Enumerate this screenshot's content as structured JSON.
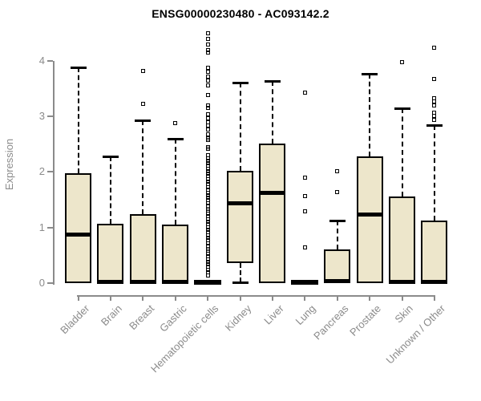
{
  "chart_data": {
    "type": "boxplot",
    "title": "ENSG00000230480 - AC093142.2",
    "ylabel": "Expression",
    "xlabel": "",
    "yticks": [
      0,
      1,
      2,
      3,
      4
    ],
    "ylim": [
      0,
      4.55
    ],
    "grid": false,
    "legend": "none",
    "palette": {
      "background": "#FFFFFF",
      "axis": "#8B8B8B",
      "box_fill": "#EDE6CB",
      "box_border": "#000000"
    },
    "categories": [
      "Bladder",
      "Brain",
      "Breast",
      "Gastric",
      "Hematopoietic cells",
      "Kidney",
      "Liver",
      "Lung",
      "Pancreas",
      "Prostate",
      "Skin",
      "Unknown / Other"
    ],
    "boxes": [
      {
        "category": "Bladder",
        "q1": 0.0,
        "median": 0.88,
        "q3": 1.97,
        "whisker_low": null,
        "whisker_high": 3.88,
        "outliers": []
      },
      {
        "category": "Brain",
        "q1": 0.0,
        "median": 0.02,
        "q3": 1.07,
        "whisker_low": null,
        "whisker_high": 2.28,
        "outliers": []
      },
      {
        "category": "Breast",
        "q1": 0.0,
        "median": 0.02,
        "q3": 1.24,
        "whisker_low": null,
        "whisker_high": 2.93,
        "outliers": [
          3.22,
          3.81
        ]
      },
      {
        "category": "Gastric",
        "q1": 0.0,
        "median": 0.02,
        "q3": 1.05,
        "whisker_low": null,
        "whisker_high": 2.6,
        "outliers": [
          2.88
        ]
      },
      {
        "category": "Hematopoietic cells",
        "q1": 0.0,
        "median": 0.02,
        "q3": 0.04,
        "whisker_low": null,
        "whisker_high": null,
        "outliers": [
          4.49,
          4.39,
          4.29,
          4.19,
          4.15,
          3.88,
          3.8,
          3.72,
          3.64,
          3.55,
          3.38,
          3.2,
          3.16,
          3.04,
          2.97,
          2.9,
          2.83,
          2.76,
          2.68,
          2.6,
          2.57,
          2.44,
          2.41,
          2.3,
          2.25,
          2.2,
          2.16,
          2.11,
          2.06,
          2.02,
          1.97,
          1.92,
          1.87,
          1.82,
          1.78,
          1.73,
          1.68,
          1.63,
          1.58,
          1.54,
          1.49,
          1.44,
          1.39,
          1.34,
          1.3,
          1.25,
          1.2,
          1.15,
          1.1,
          1.06,
          1.01,
          0.96,
          0.91,
          0.86,
          0.82,
          0.77,
          0.72,
          0.67,
          0.62,
          0.58,
          0.53,
          0.48,
          0.43,
          0.38,
          0.34,
          0.29,
          0.24,
          0.19,
          0.14
        ]
      },
      {
        "category": "Kidney",
        "q1": 0.36,
        "median": 1.44,
        "q3": 2.02,
        "whisker_low": 0.02,
        "whisker_high": 3.61,
        "outliers": []
      },
      {
        "category": "Liver",
        "q1": 0.0,
        "median": 1.63,
        "q3": 2.51,
        "whisker_low": null,
        "whisker_high": 3.64,
        "outliers": []
      },
      {
        "category": "Lung",
        "q1": 0.0,
        "median": 0.02,
        "q3": 0.04,
        "whisker_low": null,
        "whisker_high": null,
        "outliers": [
          0.64,
          1.29,
          1.57,
          1.9,
          3.43
        ]
      },
      {
        "category": "Pancreas",
        "q1": 0.0,
        "median": 0.03,
        "q3": 0.6,
        "whisker_low": null,
        "whisker_high": 1.13,
        "outliers": [
          1.64,
          2.01
        ]
      },
      {
        "category": "Prostate",
        "q1": 0.0,
        "median": 1.23,
        "q3": 2.28,
        "whisker_low": null,
        "whisker_high": 3.77,
        "outliers": []
      },
      {
        "category": "Skin",
        "q1": 0.0,
        "median": 0.02,
        "q3": 1.56,
        "whisker_low": null,
        "whisker_high": 3.15,
        "outliers": [
          3.97
        ]
      },
      {
        "category": "Unknown / Other",
        "q1": 0.0,
        "median": 0.02,
        "q3": 1.13,
        "whisker_low": null,
        "whisker_high": 2.84,
        "outliers": [
          2.93,
          3.01,
          3.07,
          3.2,
          3.27,
          3.32,
          3.67,
          4.23
        ]
      }
    ]
  }
}
